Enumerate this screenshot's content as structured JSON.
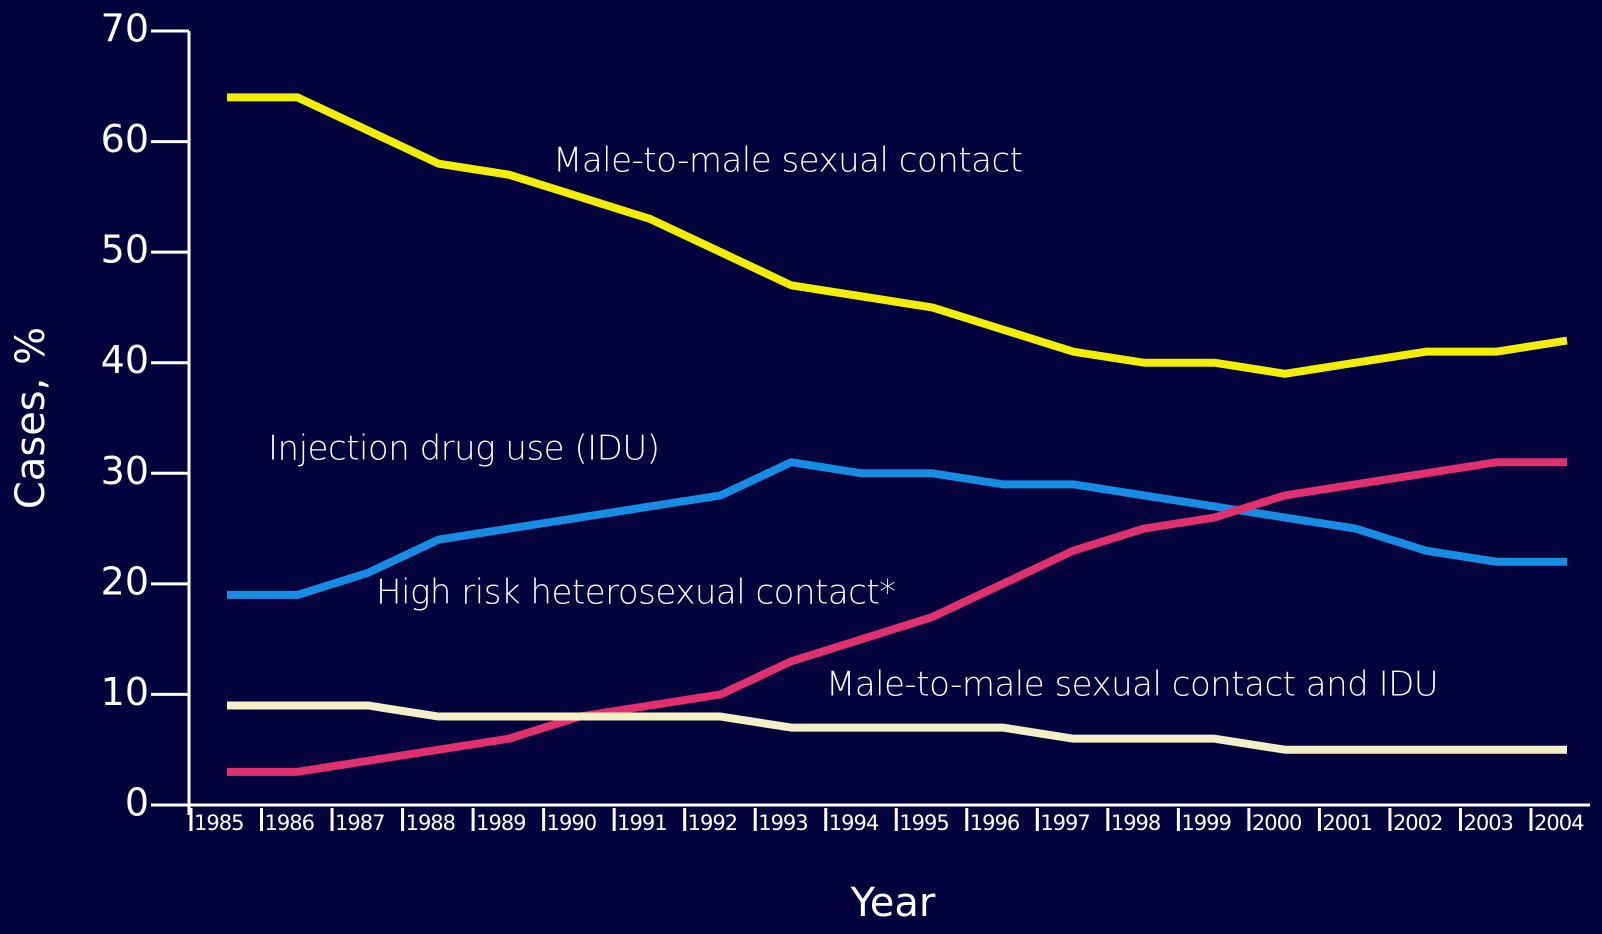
{
  "chart_data": {
    "type": "line",
    "xlabel": "Year",
    "ylabel": "Cases, %",
    "categories": [
      "1985",
      "1986",
      "1987",
      "1988",
      "1989",
      "1990",
      "1991",
      "1992",
      "1993",
      "1994",
      "1995",
      "1996",
      "1997",
      "1998",
      "1999",
      "2000",
      "2001",
      "2002",
      "2003",
      "2004"
    ],
    "series": [
      {
        "name": "Male-to-male sexual contact",
        "color": "#f2ee00",
        "values": [
          64,
          64,
          61,
          58,
          57,
          55,
          53,
          50,
          47,
          46,
          45,
          43,
          41,
          40,
          40,
          39,
          40,
          41,
          41,
          42
        ]
      },
      {
        "name": "Injection drug use (IDU)",
        "color": "#168de2",
        "values": [
          19,
          19,
          21,
          24,
          25,
          26,
          27,
          28,
          31,
          30,
          30,
          29,
          29,
          28,
          27,
          26,
          25,
          23,
          22,
          22
        ]
      },
      {
        "name": "High risk heterosexual contact*",
        "color": "#e0306e",
        "values": [
          3,
          3,
          4,
          5,
          6,
          8,
          9,
          10,
          13,
          15,
          17,
          20,
          23,
          25,
          26,
          28,
          29,
          30,
          31,
          31
        ]
      },
      {
        "name": "Male-to-male sexual contact and IDU",
        "color": "#f4efc6",
        "values": [
          9,
          9,
          9,
          8,
          8,
          8,
          8,
          8,
          7,
          7,
          7,
          7,
          6,
          6,
          6,
          5,
          5,
          5,
          5,
          5
        ]
      }
    ],
    "ylim": [
      0,
      70
    ],
    "yticks": [
      0,
      10,
      20,
      30,
      40,
      50,
      60,
      70
    ]
  }
}
